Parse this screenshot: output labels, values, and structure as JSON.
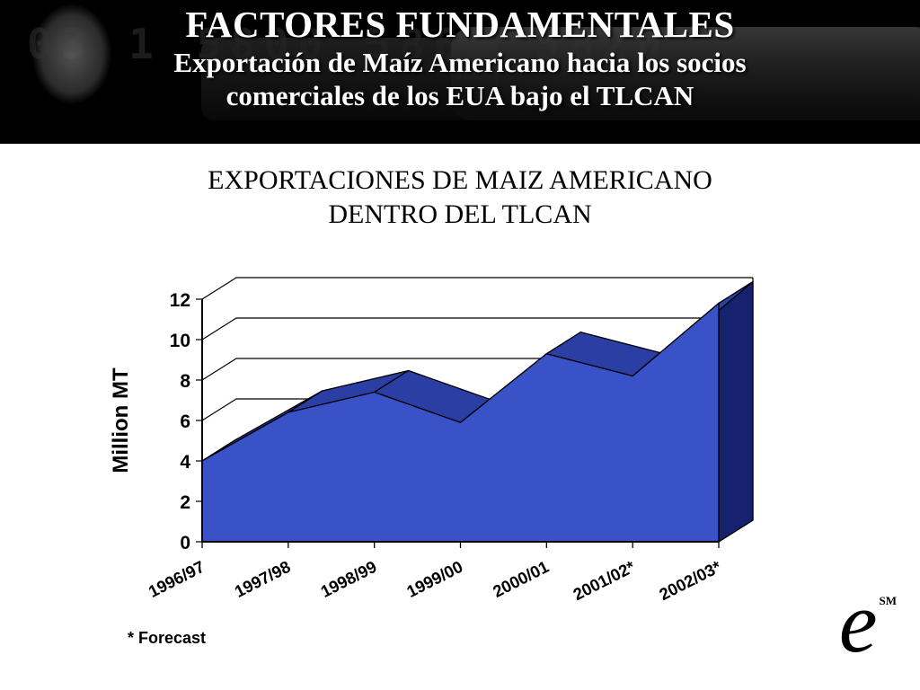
{
  "header": {
    "title": "FACTORES FUNDAMENTALES",
    "subtitle_line1": "Exportación de Maíz Americano hacia los socios",
    "subtitle_line2": "comerciales de los EUA bajo el TLCAN",
    "photo_digits": "03 1  5800 5860 5820"
  },
  "body": {
    "title_line1": "EXPORTACIONES DE MAIZ AMERICANO",
    "title_line2": "DENTRO DEL TLCAN"
  },
  "footer": {
    "footnote": "* Forecast",
    "logo_text": "e",
    "logo_superscript": "SM"
  },
  "chart_data": {
    "type": "area",
    "projection": "3d",
    "title": "EXPORTACIONES DE MAIZ AMERICANO DENTRO DEL TLCAN",
    "ylabel": "Million MT",
    "xlabel": "",
    "categories": [
      "1996/97",
      "1997/98",
      "1998/99",
      "1999/00",
      "2000/01",
      "2001/02*",
      "2002/03*"
    ],
    "values": [
      4.0,
      6.4,
      7.4,
      5.9,
      9.3,
      8.2,
      11.8
    ],
    "ylim": [
      0,
      12
    ],
    "yticks": [
      0,
      2,
      4,
      6,
      8,
      10,
      12
    ],
    "grid": true,
    "legend": false,
    "footnote": "* Forecast",
    "colors": {
      "area_front": "#3A52C8",
      "area_top": "#2B3EA4",
      "area_side": "#16226E",
      "outline": "#000000"
    }
  }
}
